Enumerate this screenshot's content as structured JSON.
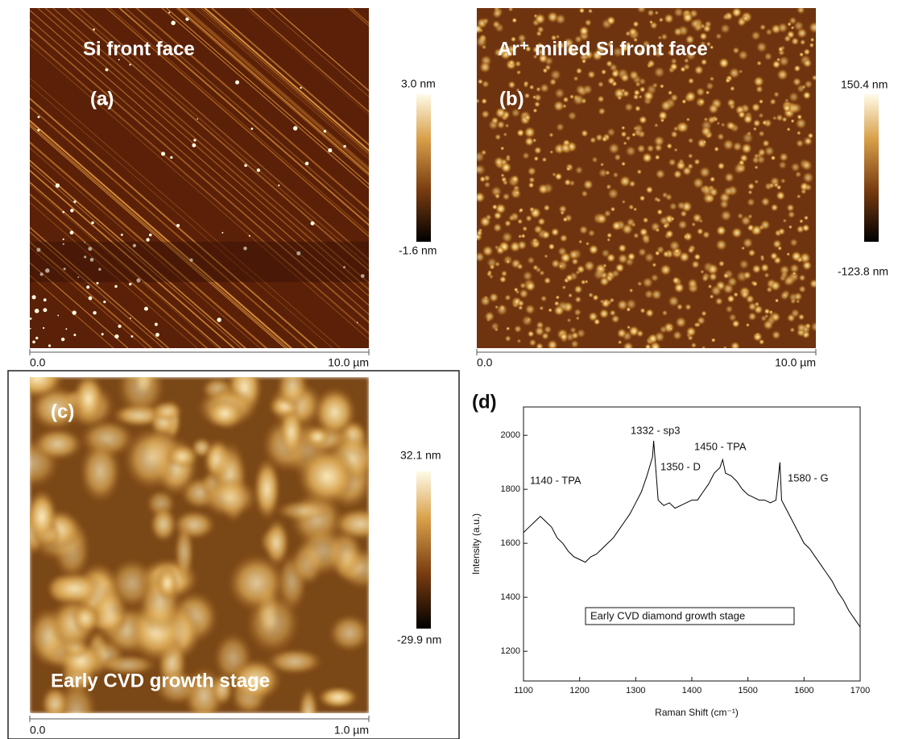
{
  "panels": [
    {
      "label": "(a)",
      "caption": "Si front face",
      "scale_start": "0.0",
      "scale_end": "10.0 µm",
      "colorbar_max": "3.0 nm",
      "colorbar_min": "-1.6 nm"
    },
    {
      "label": "(b)",
      "caption": "Ar⁺ milled Si front face",
      "scale_start": "0.0",
      "scale_end": "10.0 µm",
      "colorbar_max": "150.4 nm",
      "colorbar_min": "-123.8 nm"
    },
    {
      "label": "(c)",
      "caption": "Early CVD growth stage",
      "scale_start": "0.0",
      "scale_end": "1.0 µm",
      "colorbar_max": "32.1 nm",
      "colorbar_min": "-29.9 nm"
    }
  ],
  "chart_data": {
    "type": "line",
    "panel_label": "(d)",
    "x_label": "Raman Shift (cm⁻¹)",
    "y_label": "Intensity (a.u.)",
    "x": [
      1100,
      1110,
      1120,
      1130,
      1140,
      1150,
      1160,
      1170,
      1180,
      1190,
      1200,
      1210,
      1220,
      1230,
      1240,
      1250,
      1260,
      1270,
      1280,
      1290,
      1300,
      1310,
      1320,
      1330,
      1332,
      1340,
      1350,
      1360,
      1370,
      1380,
      1390,
      1400,
      1410,
      1420,
      1430,
      1440,
      1450,
      1455,
      1460,
      1470,
      1480,
      1490,
      1500,
      1510,
      1520,
      1530,
      1540,
      1550,
      1557,
      1560,
      1570,
      1580,
      1590,
      1600,
      1610,
      1620,
      1630,
      1640,
      1650,
      1660,
      1670,
      1680,
      1690,
      1700
    ],
    "values": [
      1640,
      1660,
      1680,
      1700,
      1680,
      1660,
      1620,
      1600,
      1570,
      1550,
      1540,
      1530,
      1550,
      1560,
      1580,
      1600,
      1620,
      1650,
      1680,
      1710,
      1750,
      1790,
      1850,
      1920,
      1980,
      1760,
      1740,
      1750,
      1730,
      1740,
      1750,
      1760,
      1760,
      1790,
      1820,
      1860,
      1880,
      1910,
      1860,
      1850,
      1830,
      1800,
      1780,
      1770,
      1760,
      1760,
      1750,
      1760,
      1900,
      1760,
      1720,
      1680,
      1640,
      1600,
      1580,
      1550,
      1520,
      1490,
      1460,
      1420,
      1390,
      1350,
      1320,
      1290
    ],
    "color": "#000000",
    "xlim": [
      1100,
      1700
    ],
    "xticks": [
      1100,
      1200,
      1300,
      1400,
      1500,
      1600,
      1700
    ],
    "ylim": [
      1090,
      2105
    ],
    "yticks": [
      1200,
      1400,
      1600,
      1800,
      2000
    ],
    "annotations": [
      "1332 - sp3",
      "1350 - D",
      "1450 - TPA",
      "1140 - TPA",
      "1580 - G"
    ],
    "inset_label": "Early CVD diamond growth stage"
  }
}
